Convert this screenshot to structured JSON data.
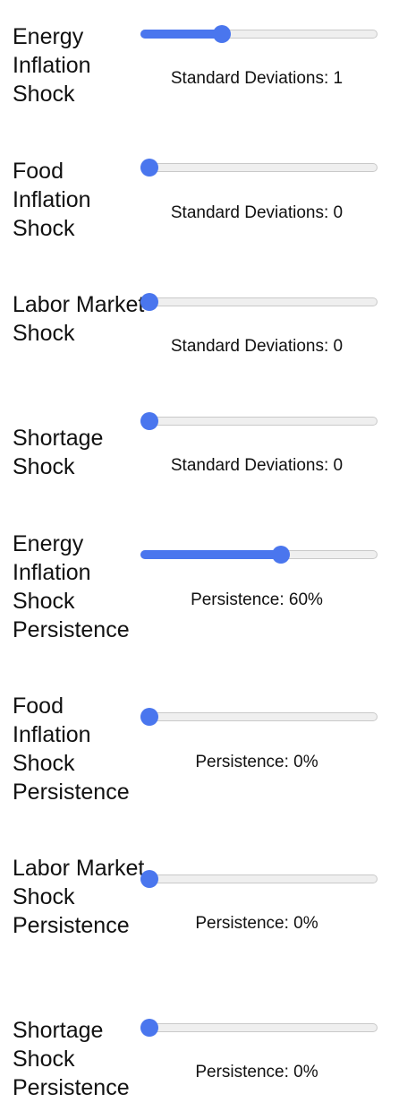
{
  "controls": [
    {
      "label": "Energy Inflation Shock",
      "value_text": "Standard Deviations: 1",
      "level": 0.33
    },
    {
      "label": "Food Inflation Shock",
      "value_text": "Standard Deviations: 0",
      "level": 0
    },
    {
      "label": "Labor Market Shock",
      "value_text": "Standard Deviations: 0",
      "level": 0
    },
    {
      "label": "Shortage Shock",
      "value_text": "Standard Deviations: 0",
      "level": 0
    },
    {
      "label": "Energy Inflation Shock Persistence",
      "value_text": "Persistence: 60%",
      "level": 0.6
    },
    {
      "label": "Food Inflation Shock Persistence",
      "value_text": "Persistence: 0%",
      "level": 0
    },
    {
      "label": "Labor Market Shock Persistence",
      "value_text": "Persistence: 0%",
      "level": 0
    },
    {
      "label": "Shortage Shock Persistence",
      "value_text": "Persistence: 0%",
      "level": 0
    }
  ],
  "colors": {
    "accent": "#4a76ee",
    "track": "#efefef",
    "track_border": "#c9c9c9"
  }
}
